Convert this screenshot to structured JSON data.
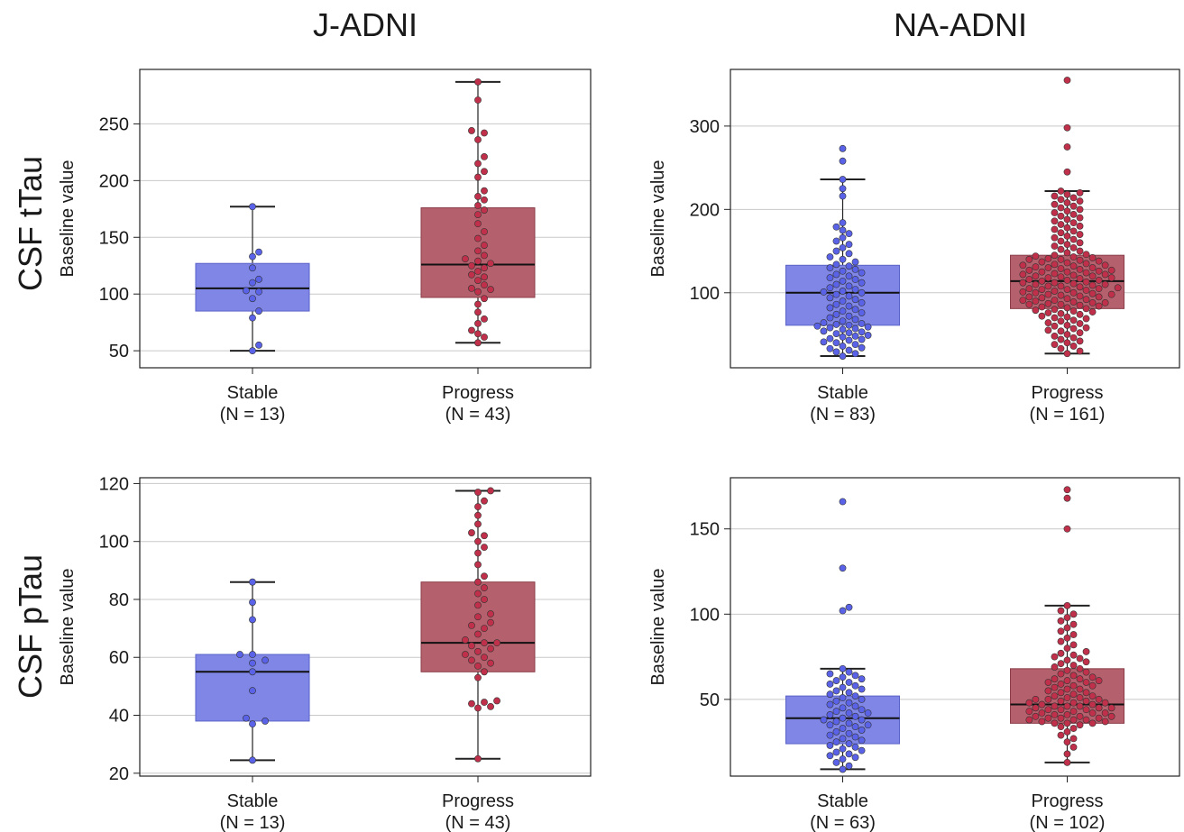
{
  "columns": [
    "J-ADNI",
    "NA-ADNI"
  ],
  "rows": [
    "CSF tTau",
    "CSF pTau"
  ],
  "colors": {
    "stable_fill": "#7f86e6",
    "stable_point": "#5a63e8",
    "progress_fill": "#b5606d",
    "progress_point": "#c0304a",
    "grid": "#c8c8c8"
  },
  "chart_data": [
    {
      "type": "box",
      "ylabel": "Baseline value",
      "ylim": [
        35,
        298
      ],
      "yticks": [
        50,
        100,
        150,
        200,
        250
      ],
      "groups": [
        {
          "label": "Stable",
          "n_label": "(N = 13)",
          "stats": {
            "whisker_low": 50,
            "q1": 85,
            "median": 105,
            "q3": 127,
            "whisker_high": 177
          },
          "points": [
            50,
            55,
            79,
            85,
            96,
            102,
            103,
            110,
            113,
            123,
            133,
            137,
            177
          ]
        },
        {
          "label": "Progress",
          "n_label": "(N = 43)",
          "stats": {
            "whisker_low": 57,
            "q1": 97,
            "median": 126,
            "q3": 176,
            "whisker_high": 287
          },
          "points": [
            57,
            62,
            65,
            68,
            74,
            78,
            84,
            91,
            96,
            102,
            104,
            105,
            108,
            112,
            115,
            117,
            120,
            123,
            125,
            127,
            129,
            131,
            134,
            138,
            143,
            149,
            155,
            162,
            170,
            174,
            178,
            183,
            186,
            191,
            203,
            208,
            215,
            221,
            236,
            242,
            244,
            271,
            287
          ]
        }
      ]
    },
    {
      "type": "box",
      "ylabel": "Baseline value",
      "ylim": [
        10,
        368
      ],
      "yticks": [
        100,
        200,
        300
      ],
      "groups": [
        {
          "label": "Stable",
          "n_label": "(N = 83)",
          "stats": {
            "whisker_low": 24,
            "q1": 61,
            "median": 100,
            "q3": 133,
            "whisker_high": 236
          },
          "points": [
            24,
            27,
            29,
            31,
            33,
            34,
            36,
            38,
            40,
            41,
            43,
            44,
            45,
            47,
            48,
            49,
            51,
            52,
            53,
            54,
            56,
            57,
            58,
            59,
            60,
            61,
            62,
            63,
            64,
            66,
            68,
            70,
            72,
            74,
            76,
            78,
            80,
            82,
            84,
            86,
            88,
            90,
            92,
            94,
            96,
            98,
            100,
            101,
            102,
            104,
            106,
            108,
            110,
            112,
            114,
            116,
            118,
            120,
            122,
            124,
            126,
            128,
            130,
            132,
            134,
            137,
            140,
            143,
            147,
            150,
            154,
            158,
            162,
            166,
            171,
            175,
            179,
            184,
            216,
            225,
            236,
            258,
            273
          ]
        },
        {
          "label": "Progress",
          "n_label": "(N = 161)",
          "stats": {
            "whisker_low": 27,
            "q1": 81,
            "median": 114,
            "q3": 145,
            "whisker_high": 222
          },
          "points": [
            27,
            30,
            33,
            36,
            38,
            40,
            42,
            44,
            46,
            48,
            50,
            52,
            54,
            55,
            57,
            58,
            60,
            61,
            63,
            64,
            66,
            67,
            69,
            70,
            71,
            72,
            74,
            75,
            76,
            77,
            78,
            79,
            80,
            81,
            82,
            83,
            84,
            85,
            86,
            87,
            88,
            89,
            90,
            91,
            92,
            93,
            94,
            95,
            96,
            97,
            98,
            99,
            100,
            100,
            101,
            102,
            103,
            104,
            105,
            105,
            106,
            107,
            108,
            109,
            110,
            110,
            111,
            112,
            113,
            114,
            115,
            115,
            116,
            117,
            118,
            119,
            120,
            120,
            121,
            122,
            123,
            124,
            125,
            125,
            126,
            127,
            128,
            129,
            130,
            131,
            132,
            133,
            134,
            135,
            136,
            137,
            138,
            139,
            140,
            141,
            142,
            143,
            144,
            145,
            146,
            148,
            150,
            152,
            154,
            156,
            158,
            160,
            162,
            164,
            166,
            168,
            170,
            172,
            174,
            176,
            178,
            180,
            182,
            184,
            186,
            188,
            190,
            192,
            194,
            196,
            198,
            200,
            202,
            204,
            206,
            208,
            210,
            212,
            214,
            216,
            218,
            220,
            222,
            245,
            275,
            298,
            355,
            95,
            104,
            118,
            127,
            133,
            112,
            108,
            122,
            130,
            98,
            88,
            140,
            91,
            86
          ]
        }
      ]
    },
    {
      "type": "box",
      "ylabel": "Baseline value",
      "ylim": [
        19,
        122
      ],
      "yticks": [
        20,
        40,
        60,
        80,
        100,
        120
      ],
      "groups": [
        {
          "label": "Stable",
          "n_label": "(N = 13)",
          "stats": {
            "whisker_low": 24.5,
            "q1": 38,
            "median": 55,
            "q3": 61,
            "whisker_high": 86
          },
          "points": [
            24.5,
            37,
            38,
            39,
            48.5,
            55,
            58,
            59,
            61,
            61,
            73,
            79,
            86
          ]
        },
        {
          "label": "Progress",
          "n_label": "(N = 43)",
          "stats": {
            "whisker_low": 25,
            "q1": 55,
            "median": 65,
            "q3": 86,
            "whisker_high": 117.5
          },
          "points": [
            25,
            42.5,
            43,
            44,
            44.5,
            45,
            53,
            55,
            57,
            58,
            59,
            60,
            61,
            62,
            63,
            64,
            65,
            65,
            66,
            68,
            70,
            71,
            72,
            74,
            75,
            78,
            80,
            82,
            84,
            86,
            88,
            92,
            96,
            98,
            100,
            102,
            103,
            106,
            109,
            112,
            114,
            117,
            117.5
          ]
        }
      ]
    },
    {
      "type": "box",
      "ylabel": "Baseline value",
      "ylim": [
        5,
        180
      ],
      "yticks": [
        50,
        100,
        150
      ],
      "groups": [
        {
          "label": "Stable",
          "n_label": "(N = 63)",
          "stats": {
            "whisker_low": 9,
            "q1": 24,
            "median": 39,
            "q3": 52,
            "whisker_high": 68
          },
          "points": [
            9,
            11,
            13,
            15,
            16,
            17,
            18,
            19,
            20,
            21,
            22,
            23,
            24,
            25,
            26,
            27,
            28,
            29,
            30,
            31,
            32,
            33,
            34,
            35,
            36,
            37,
            38,
            38,
            39,
            40,
            41,
            42,
            43,
            44,
            45,
            46,
            47,
            48,
            49,
            50,
            51,
            52,
            53,
            54,
            55,
            56,
            57,
            58,
            59,
            60,
            61,
            62,
            63,
            64,
            65,
            66,
            68,
            35,
            42,
            102,
            104,
            127,
            166
          ]
        },
        {
          "label": "Progress",
          "n_label": "(N = 102)",
          "stats": {
            "whisker_low": 13,
            "q1": 36,
            "median": 47,
            "q3": 68,
            "whisker_high": 105
          },
          "points": [
            13,
            18,
            22,
            25,
            27,
            29,
            31,
            33,
            34,
            35,
            36,
            36,
            37,
            37,
            38,
            38,
            39,
            39,
            40,
            40,
            41,
            41,
            42,
            42,
            43,
            43,
            44,
            44,
            45,
            45,
            46,
            46,
            47,
            47,
            48,
            48,
            49,
            49,
            50,
            50,
            51,
            51,
            52,
            53,
            54,
            55,
            56,
            57,
            58,
            59,
            60,
            60,
            61,
            61,
            62,
            62,
            63,
            64,
            65,
            66,
            67,
            68,
            69,
            70,
            71,
            72,
            73,
            74,
            75,
            76,
            77,
            78,
            80,
            82,
            84,
            86,
            88,
            90,
            92,
            94,
            96,
            98,
            100,
            102,
            105,
            38,
            42,
            46,
            50,
            54,
            58,
            40,
            44,
            48,
            52,
            56,
            36,
            39,
            150,
            168,
            173,
            45
          ]
        }
      ]
    }
  ]
}
